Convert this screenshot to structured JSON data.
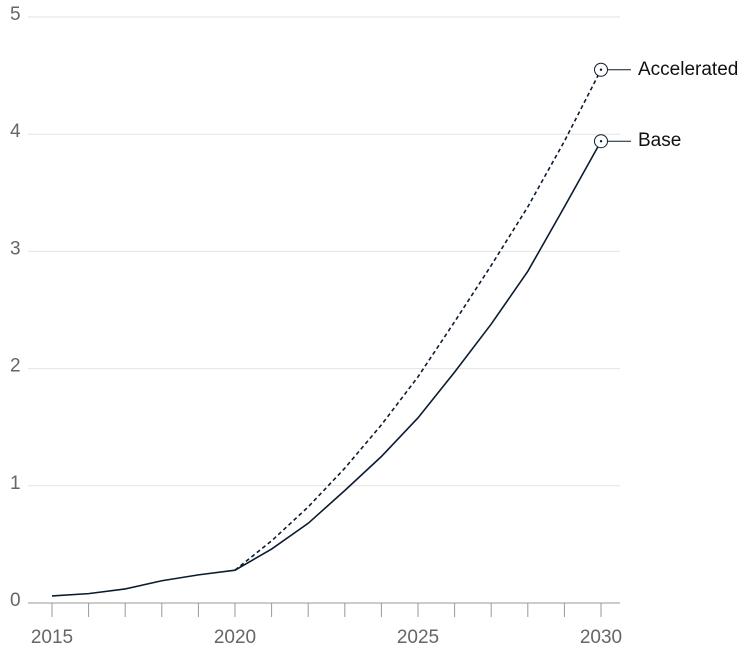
{
  "chart_data": {
    "type": "line",
    "x": [
      2015,
      2016,
      2017,
      2018,
      2019,
      2020,
      2021,
      2022,
      2023,
      2024,
      2025,
      2026,
      2027,
      2028,
      2029,
      2030
    ],
    "series": [
      {
        "name": "Accelerated",
        "color": "#0b1c30",
        "line_style": "dashed",
        "values": [
          null,
          null,
          null,
          null,
          null,
          0.28,
          0.53,
          0.82,
          1.15,
          1.52,
          1.93,
          2.4,
          2.88,
          3.38,
          3.94,
          4.55
        ]
      },
      {
        "name": "Base",
        "color": "#0b1c30",
        "line_style": "solid",
        "values": [
          0.06,
          0.08,
          0.12,
          0.19,
          0.24,
          0.28,
          0.46,
          0.68,
          0.96,
          1.25,
          1.58,
          1.97,
          2.38,
          2.83,
          3.38,
          3.94
        ]
      }
    ],
    "xlim": [
      2015,
      2030
    ],
    "xticks": [
      2015,
      2020,
      2025,
      2030
    ],
    "ylim": [
      0,
      5
    ],
    "yticks": [
      0,
      1,
      2,
      3,
      4,
      5
    ],
    "grid": true
  }
}
